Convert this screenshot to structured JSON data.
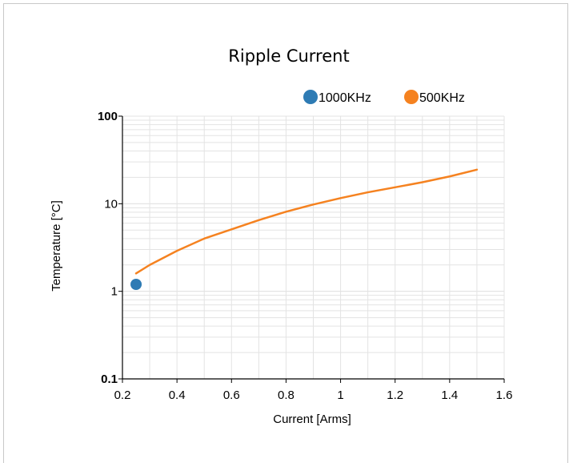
{
  "chart_data": {
    "type": "line",
    "title": "Ripple Current",
    "xlabel": "Current [Arms]",
    "ylabel": "Temperature [°C]",
    "x_scale": "linear",
    "y_scale": "log",
    "xlim": [
      0.2,
      1.6
    ],
    "ylim": [
      0.1,
      100
    ],
    "x_ticks": [
      "0.2",
      "0.4",
      "0.6",
      "0.8",
      "1",
      "1.2",
      "1.4",
      "1.6"
    ],
    "y_ticks": [
      "0.1",
      "1",
      "10",
      "100"
    ],
    "grid": true,
    "legend_position": "top-right",
    "series": [
      {
        "name": "1000KHz",
        "color": "#2e7bb4",
        "marker": "circle",
        "points": [
          {
            "x": 0.25,
            "y": 1.2
          }
        ]
      },
      {
        "name": "500KHz",
        "color": "#f58220",
        "marker": "none",
        "points": [
          {
            "x": 0.25,
            "y": 1.6
          },
          {
            "x": 0.3,
            "y": 2.0
          },
          {
            "x": 0.4,
            "y": 2.9
          },
          {
            "x": 0.5,
            "y": 4.0
          },
          {
            "x": 0.6,
            "y": 5.1
          },
          {
            "x": 0.7,
            "y": 6.5
          },
          {
            "x": 0.8,
            "y": 8.1
          },
          {
            "x": 0.9,
            "y": 9.8
          },
          {
            "x": 1.0,
            "y": 11.6
          },
          {
            "x": 1.1,
            "y": 13.5
          },
          {
            "x": 1.2,
            "y": 15.4
          },
          {
            "x": 1.3,
            "y": 17.6
          },
          {
            "x": 1.4,
            "y": 20.5
          },
          {
            "x": 1.5,
            "y": 24.5
          }
        ]
      }
    ]
  }
}
